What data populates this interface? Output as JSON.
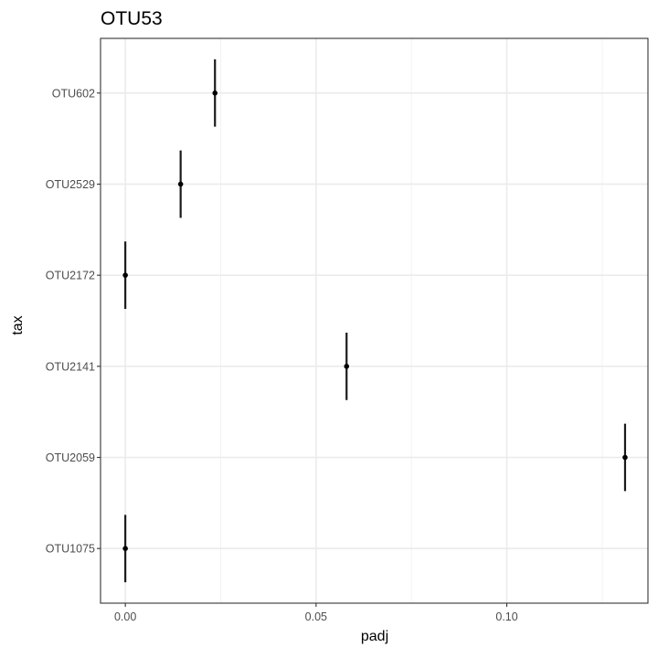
{
  "chart_data": {
    "type": "scatter",
    "title": "OTU53",
    "xlabel": "padj",
    "ylabel": "tax",
    "xlim": [
      -0.0065,
      0.137
    ],
    "x_ticks": [
      0.0,
      0.05,
      0.1
    ],
    "x_tick_labels": [
      "0.00",
      "0.05",
      "0.10"
    ],
    "categories": [
      "OTU1075",
      "OTU2059",
      "OTU2141",
      "OTU2172",
      "OTU2529",
      "OTU602"
    ],
    "points": [
      {
        "category": "OTU1075",
        "x": 0.0
      },
      {
        "category": "OTU2059",
        "x": 0.131
      },
      {
        "category": "OTU2141",
        "x": 0.058
      },
      {
        "category": "OTU2172",
        "x": 0.0
      },
      {
        "category": "OTU2529",
        "x": 0.0145
      },
      {
        "category": "OTU602",
        "x": 0.0235
      }
    ],
    "errorbar_halfheight_category_units": 0.37,
    "grid": true,
    "colors": {
      "points": "#000000",
      "errorbars": "#1a1a1a",
      "grid_major": "#ebebeb",
      "grid_minor": "#f2f2f2",
      "panel_border": "#333333"
    }
  }
}
